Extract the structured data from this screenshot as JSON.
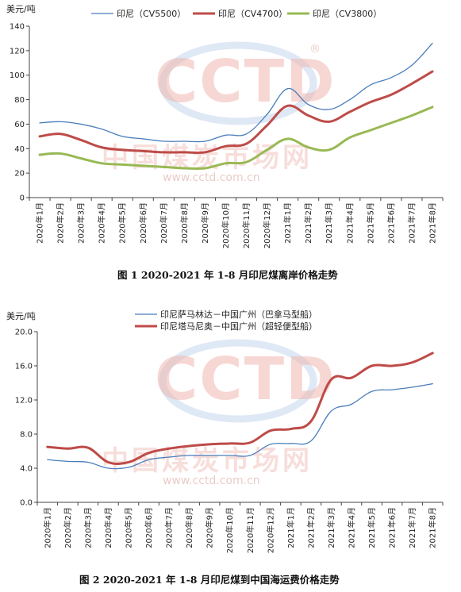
{
  "watermark": {
    "logo": "CCTD",
    "name": "中国煤炭市场网",
    "url": "www.cctd.com.cn",
    "registered": "®"
  },
  "chart_data": [
    {
      "type": "line",
      "title": "图 1 2020-2021 年 1-8 月印尼煤离岸价格走势",
      "ylabel": "美元/吨",
      "ylim": [
        0,
        140
      ],
      "yticks": [
        0,
        20,
        40,
        60,
        80,
        100,
        120,
        140
      ],
      "categories": [
        "2020年1月",
        "2020年2月",
        "2020年3月",
        "2020年4月",
        "2020年5月",
        "2020年6月",
        "2020年7月",
        "2020年8月",
        "2020年9月",
        "2020年10月",
        "2020年11月",
        "2020年12月",
        "2021年1月",
        "2021年2月",
        "2021年3月",
        "2021年4月",
        "2021年5月",
        "2021年6月",
        "2021年7月",
        "2021年8月"
      ],
      "legend_position": "top",
      "series": [
        {
          "name": "印尼（CV5500）",
          "color": "#4a7ebb",
          "width": 1.3,
          "values": [
            61,
            62,
            60,
            56,
            50,
            48,
            46,
            46,
            46,
            51,
            52,
            68,
            89,
            76,
            72,
            80,
            92,
            98,
            108,
            126
          ]
        },
        {
          "name": "印尼（CV4700）",
          "color": "#be4b48",
          "width": 3,
          "values": [
            50,
            52,
            47,
            41,
            39,
            38,
            37,
            37,
            37,
            42,
            44,
            59,
            75,
            67,
            62,
            70,
            78,
            84,
            93,
            103
          ]
        },
        {
          "name": "印尼（CV3800）",
          "color": "#98b954",
          "width": 3,
          "values": [
            35,
            36,
            32,
            28,
            27,
            26,
            25,
            24,
            24,
            28,
            29,
            39,
            48,
            41,
            39,
            49,
            55,
            61,
            67,
            74
          ]
        }
      ]
    },
    {
      "type": "line",
      "title": "图 2 2020-2021 年 1-8 月印尼煤到中国海运费价格走势",
      "ylabel": "美元/吨",
      "ylim": [
        0,
        20
      ],
      "yticks": [
        "0.0",
        "4.0",
        "8.0",
        "12.0",
        "16.0",
        "20.0"
      ],
      "categories": [
        "2020年1月",
        "2020年2月",
        "2020年3月",
        "2020年4月",
        "2020年5月",
        "2020年6月",
        "2020年7月",
        "2020年8月",
        "2020年9月",
        "2020年10月",
        "2020年11月",
        "2020年12月",
        "2021年1月",
        "2021年2月",
        "2021年3月",
        "2021年4月",
        "2021年5月",
        "2021年6月",
        "2021年7月",
        "2021年8月"
      ],
      "legend_position": "top-center",
      "series": [
        {
          "name": "印尼萨马林达－中国广州（巴拿马型船）",
          "color": "#4a7ebb",
          "width": 1.3,
          "values": [
            5.0,
            4.8,
            4.7,
            4.0,
            4.1,
            5.0,
            5.3,
            5.5,
            5.5,
            5.5,
            5.5,
            6.8,
            6.9,
            7.2,
            10.7,
            11.5,
            13.0,
            13.2,
            13.5,
            13.9
          ]
        },
        {
          "name": "印尼塔马尼奥－中国广州（超轻便型船）",
          "color": "#be4b48",
          "width": 3,
          "values": [
            6.5,
            6.3,
            6.4,
            4.7,
            4.7,
            5.8,
            6.3,
            6.6,
            6.8,
            6.9,
            7.0,
            8.4,
            8.6,
            9.5,
            14.4,
            14.6,
            16.0,
            16.0,
            16.4,
            17.5
          ]
        }
      ]
    }
  ]
}
